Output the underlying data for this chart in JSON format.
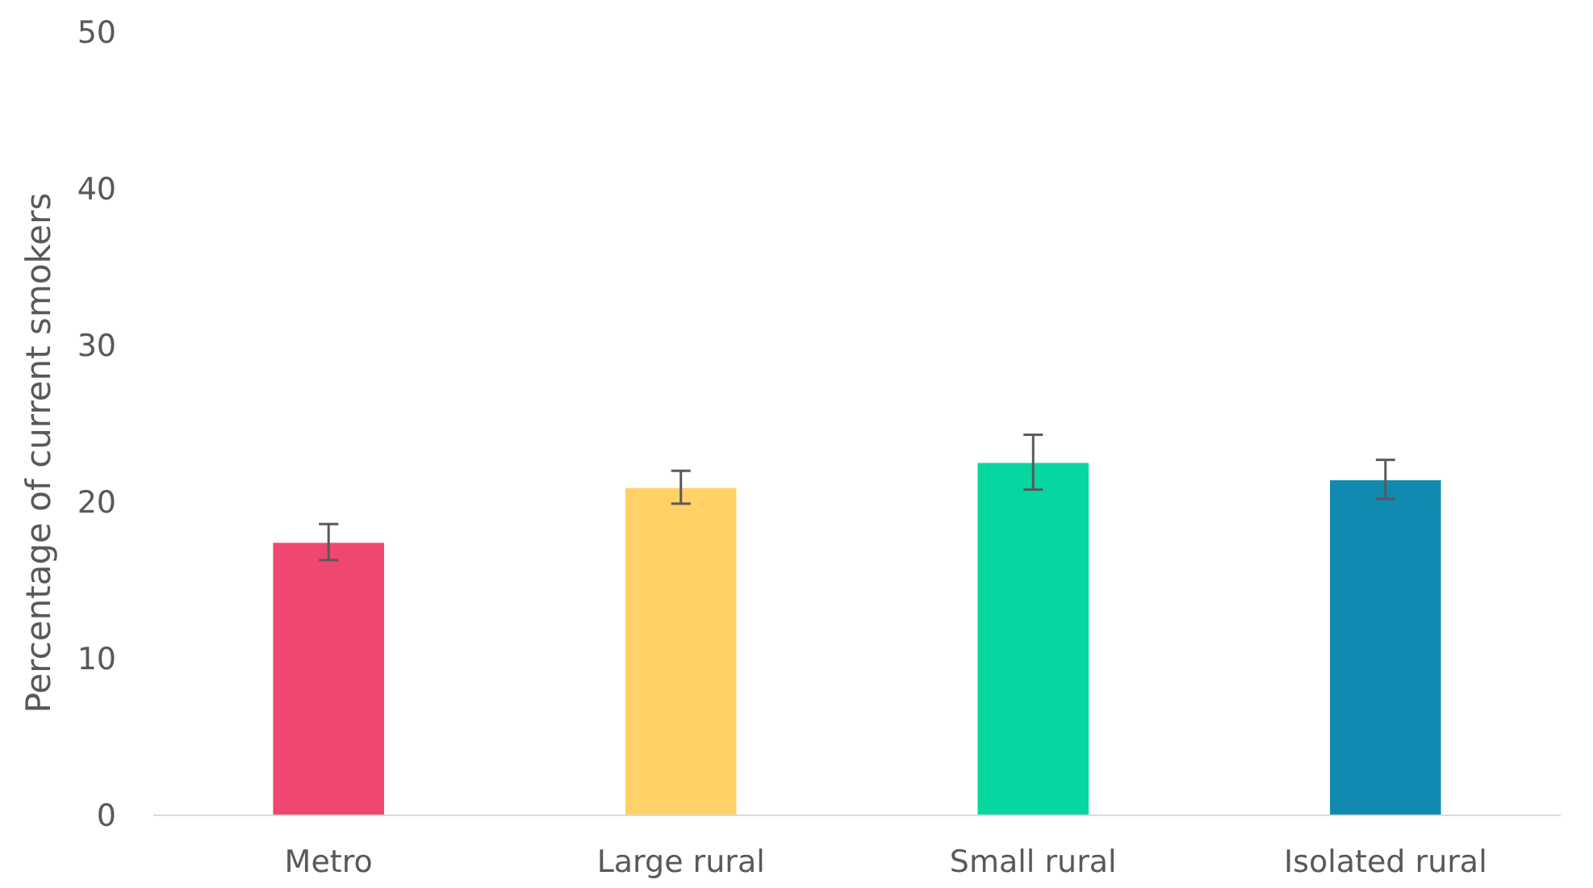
{
  "chart_data": {
    "type": "bar",
    "ylabel": "Percentage of current smokers",
    "categories": [
      "Metro",
      "Large rural",
      "Small rural",
      "Isolated rural"
    ],
    "values": [
      17.4,
      20.9,
      22.5,
      21.4
    ],
    "colors": [
      "#ef476f",
      "#ffd166",
      "#06d6a0",
      "#118ab2"
    ],
    "errors": [
      [
        16.3,
        18.6
      ],
      [
        19.9,
        22.0
      ],
      [
        20.8,
        24.3
      ],
      [
        20.2,
        22.7
      ]
    ],
    "ylim": [
      0,
      50
    ],
    "yticks": [
      0,
      10,
      20,
      30,
      40,
      50
    ],
    "grid": false
  }
}
